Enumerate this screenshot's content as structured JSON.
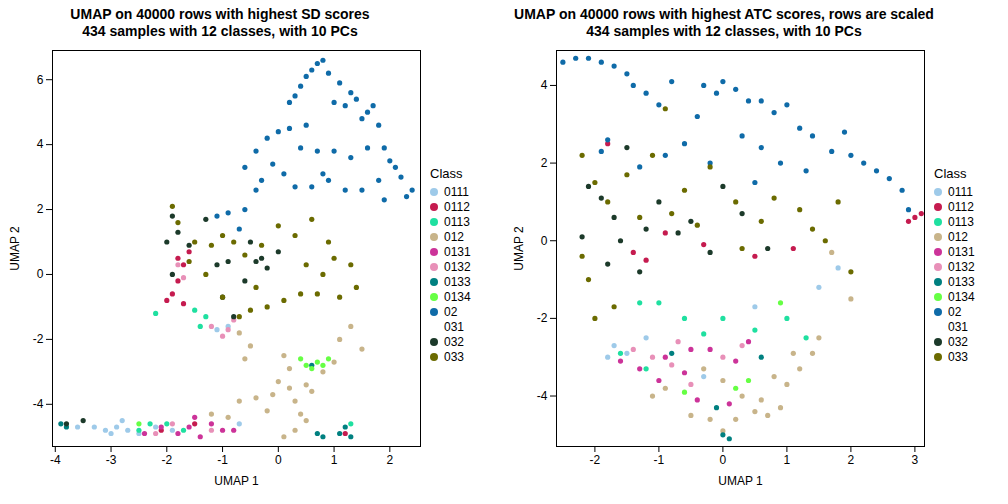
{
  "chart_data": [
    {
      "type": "scatter",
      "title": "UMAP on 40000 rows with highest SD scores",
      "subtitle": "434 samples with 12 classes, with 10 PCs",
      "x_label": "UMAP 1",
      "y_label": "UMAP 2",
      "legend_title": "Class",
      "legend": "right",
      "xlim": [
        -4.05,
        2.55
      ],
      "xticks": [
        -4,
        -3,
        -2,
        -1,
        0,
        1,
        2
      ],
      "ylim": [
        -5.3,
        6.9
      ],
      "yticks": [
        -4,
        -2,
        0,
        2,
        4,
        6
      ],
      "series": [
        {
          "name": "0111",
          "color": "#9ecae9",
          "x": [
            -3.3,
            -3.1,
            -2.9,
            -2.7,
            -2.5,
            -2.8,
            -3.0,
            -2.2,
            -1.9,
            -1.1,
            -0.9,
            -0.7,
            -3.6
          ],
          "y": [
            -4.7,
            -4.8,
            -4.7,
            -4.8,
            -4.9,
            -4.5,
            -4.9,
            -4.7,
            -4.8,
            -1.7,
            -1.6,
            -4.6,
            -4.7
          ]
        },
        {
          "name": "0112",
          "color": "#c51b4f",
          "x": [
            -1.6,
            -1.7,
            -1.8,
            -1.9,
            -2.0,
            -1.7,
            -1.8,
            -2.1,
            -1.5,
            1.2
          ],
          "y": [
            0.7,
            0.3,
            -0.2,
            -0.6,
            -0.8,
            -0.9,
            0.5,
            -4.8,
            -4.6,
            -4.9
          ]
        },
        {
          "name": "0113",
          "color": "#1fe0a0",
          "x": [
            -2.2,
            -1.5,
            -1.3,
            -1.4,
            -2.3,
            -2.0,
            -1.7,
            -2.5,
            1.3
          ],
          "y": [
            -1.2,
            -1.1,
            -1.3,
            -1.6,
            -4.6,
            -4.6,
            -4.8,
            -4.8,
            -4.6
          ]
        },
        {
          "name": "012",
          "color": "#c8b48a",
          "x": [
            -0.7,
            -0.5,
            -0.6,
            -0.4,
            -0.7,
            -0.1,
            0.0,
            0.2,
            0.3,
            0.4,
            0.3,
            0.5,
            0.2,
            0.5,
            0.8,
            1.0,
            1.1,
            1.3,
            1.5,
            0.1,
            -1.2,
            -0.9,
            0.6,
            -0.2,
            0.1
          ],
          "y": [
            -1.8,
            -2.2,
            -2.6,
            -3.8,
            -3.9,
            -3.7,
            -3.3,
            -3.5,
            -3.9,
            -4.3,
            -4.8,
            -4.5,
            -2.9,
            -3.4,
            -3.0,
            -2.7,
            -2.0,
            -1.6,
            -2.3,
            -2.5,
            -4.3,
            -4.4,
            -3.6,
            -4.2,
            -5.0
          ]
        },
        {
          "name": "0131",
          "color": "#cc3399",
          "x": [
            -2.4,
            -2.1,
            -1.8,
            -1.6,
            -1.4,
            -1.2,
            -1.0,
            -0.8,
            -1.5
          ],
          "y": [
            -4.9,
            -4.7,
            -4.9,
            -4.7,
            -5.0,
            -4.6,
            -4.8,
            -4.8,
            -4.4
          ]
        },
        {
          "name": "0132",
          "color": "#e890b8",
          "x": [
            -1.8,
            -1.7,
            -1.2,
            -0.9,
            -1.0,
            -0.8,
            -2.2,
            -1.2,
            -1.9
          ],
          "y": [
            0.3,
            -0.1,
            -1.6,
            -1.7,
            -1.9,
            -1.4,
            -4.9,
            -4.8,
            -4.6
          ]
        },
        {
          "name": "0133",
          "color": "#008080",
          "x": [
            -3.9,
            -3.8,
            0.8,
            0.7,
            1.1,
            1.2,
            1.3,
            0.6
          ],
          "y": [
            -4.6,
            -4.7,
            -5.0,
            -4.9,
            -4.9,
            -4.7,
            -5.0,
            -2.8
          ]
        },
        {
          "name": "0134",
          "color": "#66ff44",
          "x": [
            0.4,
            0.5,
            0.6,
            0.8,
            0.9,
            0.7,
            -2.5
          ],
          "y": [
            -2.6,
            -2.8,
            -2.9,
            -2.8,
            -2.6,
            -2.7,
            -4.6
          ]
        },
        {
          "name": "02",
          "color": "#0f6ba8",
          "x": [
            0.7,
            0.8,
            0.6,
            0.5,
            0.4,
            0.3,
            0.2,
            0.9,
            1.1,
            1.3,
            1.4,
            1.6,
            1.2,
            1.0,
            1.8,
            1.9,
            2.0,
            2.2,
            2.4,
            2.3,
            1.9,
            1.5,
            1.2,
            0.9,
            0.6,
            0.3,
            0.1,
            -0.1,
            -0.3,
            -0.4,
            -0.6,
            -0.9,
            -1.1,
            -0.7,
            0.0,
            -0.2,
            -0.4,
            -0.6,
            0.4,
            0.7,
            1.0,
            1.3,
            1.6,
            1.8,
            2.1,
            0.2,
            0.5,
            1.5,
            1.7,
            0.8
          ],
          "y": [
            6.5,
            6.6,
            6.3,
            6.1,
            5.8,
            5.5,
            5.3,
            6.2,
            5.9,
            5.6,
            5.4,
            5.0,
            5.2,
            5.3,
            4.6,
            3.9,
            3.5,
            3.0,
            2.6,
            2.4,
            2.3,
            2.6,
            2.6,
            2.9,
            2.7,
            2.7,
            3.1,
            3.4,
            2.9,
            2.6,
            2.0,
            1.9,
            1.8,
            1.4,
            4.4,
            4.2,
            3.8,
            3.3,
            3.9,
            3.8,
            3.8,
            3.6,
            3.9,
            2.9,
            3.3,
            4.5,
            4.6,
            4.8,
            5.2,
            3.1
          ]
        },
        {
          "name": "031",
          "color": "#ffffff",
          "x": [],
          "y": []
        },
        {
          "name": "032",
          "color": "#1c3a2a",
          "x": [
            -1.9,
            -1.8,
            -2.0,
            -1.6,
            -1.3,
            -1.1,
            -0.9,
            -0.5,
            -0.3,
            -0.4,
            0.0,
            -1.0,
            -0.8,
            -1.9,
            -0.6,
            -3.5,
            -3.8,
            -0.2
          ],
          "y": [
            1.8,
            1.3,
            1.0,
            0.9,
            1.7,
            0.3,
            0.4,
            1.0,
            0.5,
            0.4,
            0.7,
            -0.7,
            -1.3,
            0.0,
            -0.2,
            -4.5,
            -4.6,
            0.2
          ]
        },
        {
          "name": "033",
          "color": "#6b6b00",
          "x": [
            -1.9,
            -1.8,
            -1.5,
            -1.2,
            -1.0,
            -0.8,
            -0.6,
            -0.3,
            0.0,
            0.3,
            0.6,
            0.9,
            1.0,
            1.3,
            1.4,
            1.1,
            0.7,
            0.4,
            0.1,
            -0.2,
            -0.5,
            -0.7,
            -1.0,
            -1.3,
            -1.6,
            0.5,
            0.8,
            -0.4
          ],
          "y": [
            2.1,
            1.6,
            1.0,
            0.9,
            1.2,
            1.0,
            0.6,
            0.9,
            1.5,
            1.2,
            1.7,
            1.0,
            0.5,
            0.3,
            -0.4,
            -0.7,
            -0.6,
            -0.6,
            -0.8,
            -1.0,
            -1.1,
            -1.3,
            -0.7,
            0.0,
            0.4,
            0.3,
            0.0,
            -0.4
          ]
        }
      ]
    },
    {
      "type": "scatter",
      "title": "UMAP on 40000 rows with highest ATC scores, rows are scaled",
      "subtitle": "434 samples with 12 classes, with 10 PCs",
      "x_label": "UMAP 1",
      "y_label": "UMAP 2",
      "legend_title": "Class",
      "legend": "right",
      "xlim": [
        -2.6,
        3.15
      ],
      "xticks": [
        -2,
        -1,
        0,
        1,
        2,
        3
      ],
      "ylim": [
        -5.3,
        4.9
      ],
      "yticks": [
        -4,
        -2,
        0,
        2,
        4
      ],
      "series": [
        {
          "name": "0111",
          "color": "#9ecae9",
          "x": [
            -1.7,
            -1.5,
            -1.8,
            -1.2,
            0.5,
            1.5,
            1.8,
            -0.3
          ],
          "y": [
            -2.7,
            -2.9,
            -3.0,
            -2.5,
            -1.7,
            -1.2,
            -0.7,
            -3.5
          ]
        },
        {
          "name": "0112",
          "color": "#c51b4f",
          "x": [
            3.0,
            3.1,
            2.9,
            -1.8,
            -1.4,
            -1.2,
            -0.3,
            0.5,
            1.1,
            -0.9
          ],
          "y": [
            0.6,
            0.7,
            0.5,
            2.5,
            -0.3,
            -0.5,
            -0.1,
            -0.4,
            -0.2,
            0.2
          ]
        },
        {
          "name": "0113",
          "color": "#1fe0a0",
          "x": [
            -1.3,
            -1.0,
            -0.6,
            -1.6,
            -0.3,
            0.0,
            0.5,
            1.0,
            1.3,
            -1.2
          ],
          "y": [
            -1.6,
            -1.6,
            -2.0,
            -2.9,
            -2.4,
            -2.0,
            -2.3,
            -2.0,
            -2.5,
            -3.3
          ]
        },
        {
          "name": "012",
          "color": "#c8b48a",
          "x": [
            -0.3,
            0.0,
            0.3,
            0.5,
            0.7,
            0.9,
            0.2,
            0.0,
            -0.2,
            1.0,
            1.2,
            1.4,
            1.5,
            1.1,
            0.8,
            -0.9,
            -1.1,
            1.7,
            2.0,
            -0.5,
            0.6
          ],
          "y": [
            -3.3,
            -3.6,
            -4.0,
            -4.4,
            -4.5,
            -4.3,
            -4.6,
            -4.9,
            -4.6,
            -3.7,
            -3.3,
            -2.9,
            -2.5,
            -2.9,
            -3.5,
            -3.8,
            -4.0,
            -0.3,
            -1.5,
            -4.5,
            -4.1
          ]
        },
        {
          "name": "0131",
          "color": "#cc3399",
          "x": [
            -1.6,
            -1.3,
            -1.0,
            -0.9,
            -0.6,
            -0.5,
            -0.2,
            0.2,
            0.4,
            -0.4,
            0.1
          ],
          "y": [
            -3.1,
            -3.3,
            -3.6,
            -3.0,
            -3.4,
            -2.8,
            -2.8,
            -3.1,
            -2.6,
            -4.1,
            -4.2
          ]
        },
        {
          "name": "0132",
          "color": "#e890b8",
          "x": [
            -1.4,
            -1.1,
            -0.8,
            -0.5,
            0.0,
            0.3,
            -0.7
          ],
          "y": [
            -2.8,
            -3.0,
            -3.2,
            -3.7,
            -3.0,
            -2.7,
            -2.6
          ]
        },
        {
          "name": "0133",
          "color": "#008080",
          "x": [
            0.1,
            0.0,
            -0.1,
            0.6,
            -0.8
          ],
          "y": [
            -5.1,
            -5.0,
            -4.3,
            -3.0,
            -2.9
          ]
        },
        {
          "name": "0134",
          "color": "#66ff44",
          "x": [
            0.2,
            0.4,
            -0.6,
            0.9
          ],
          "y": [
            -3.8,
            -3.6,
            -3.9,
            -1.6
          ]
        },
        {
          "name": "02",
          "color": "#0f6ba8",
          "x": [
            -2.5,
            -2.3,
            -2.1,
            -1.9,
            -1.7,
            -1.5,
            -1.4,
            -1.2,
            -1.0,
            -1.8,
            -1.9,
            -0.8,
            -0.3,
            -0.1,
            0.0,
            0.2,
            0.4,
            0.6,
            0.8,
            1.0,
            1.2,
            1.4,
            1.7,
            1.9,
            2.0,
            2.2,
            2.4,
            2.6,
            2.8,
            2.9,
            -0.4,
            -0.6,
            -0.9,
            0.3,
            0.6,
            0.9,
            1.3,
            -0.2,
            -1.3,
            0.5
          ],
          "y": [
            4.6,
            4.7,
            4.7,
            4.6,
            4.5,
            4.3,
            4.0,
            3.8,
            3.5,
            2.6,
            2.3,
            4.1,
            4.0,
            3.8,
            4.1,
            3.9,
            3.6,
            3.6,
            3.3,
            3.5,
            2.9,
            2.7,
            2.3,
            2.8,
            2.2,
            2.0,
            1.8,
            1.6,
            1.3,
            0.8,
            3.2,
            2.5,
            2.2,
            2.7,
            2.4,
            2.0,
            1.8,
            2.0,
            1.9,
            1.5
          ]
        },
        {
          "name": "031",
          "color": "#ffffff",
          "x": [],
          "y": []
        },
        {
          "name": "032",
          "color": "#1c3a2a",
          "x": [
            -2.1,
            -1.9,
            -1.7,
            -1.6,
            -1.3,
            -1.2,
            -1.0,
            -0.7,
            -0.5,
            0.0,
            0.3,
            -2.2,
            -1.8,
            -0.2,
            0.7,
            -1.5
          ],
          "y": [
            1.4,
            1.1,
            0.6,
            0.0,
            -0.8,
            0.3,
            1.0,
            0.2,
            0.5,
            1.4,
            0.7,
            0.1,
            -0.6,
            -0.3,
            -0.2,
            2.4
          ]
        },
        {
          "name": "033",
          "color": "#6b6b00",
          "x": [
            -2.2,
            -2.0,
            -1.8,
            -1.5,
            -1.1,
            -0.9,
            -0.6,
            -0.2,
            0.2,
            0.6,
            0.8,
            1.2,
            1.4,
            1.6,
            2.0,
            -2.1,
            -2.0,
            -1.7,
            -0.8,
            -0.4,
            0.3,
            -1.3,
            -2.2,
            1.8
          ],
          "y": [
            2.2,
            1.5,
            1.0,
            1.7,
            2.2,
            3.4,
            1.3,
            1.9,
            1.0,
            0.5,
            1.1,
            0.8,
            0.3,
            0.0,
            -0.8,
            -1.0,
            -2.0,
            -1.7,
            0.7,
            0.4,
            -0.2,
            0.6,
            -0.4,
            1.0
          ]
        }
      ]
    }
  ]
}
